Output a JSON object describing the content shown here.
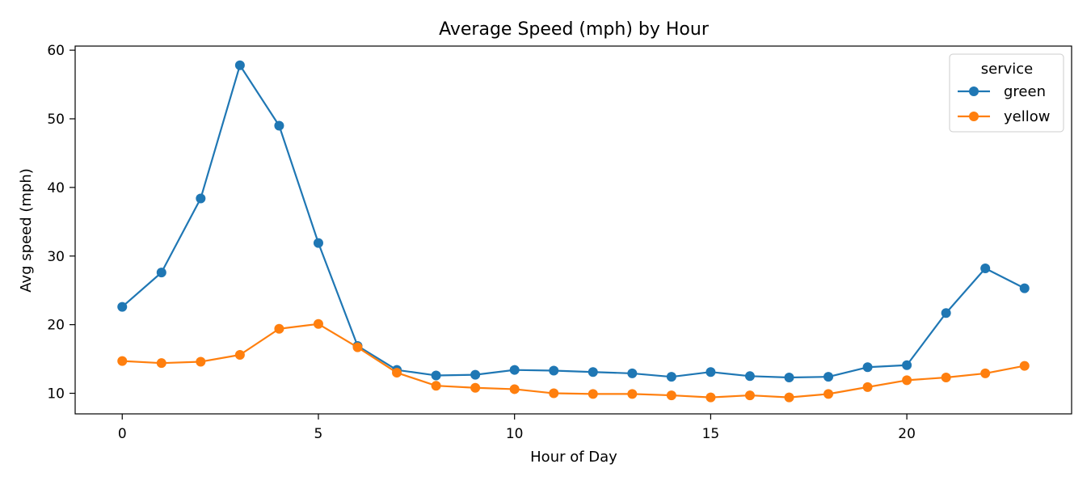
{
  "chart_data": {
    "type": "line",
    "title": "Average Speed (mph) by Hour",
    "xlabel": "Hour of Day",
    "ylabel": "Avg speed (mph)",
    "xlim": [
      -1.2,
      24.2
    ],
    "ylim": [
      7.0,
      60.6
    ],
    "xticks": [
      0,
      5,
      10,
      15,
      20
    ],
    "yticks": [
      10,
      20,
      30,
      40,
      50,
      60
    ],
    "grid": false,
    "legend": {
      "title": "service",
      "placement": "top-right"
    },
    "x": [
      0,
      1,
      2,
      3,
      4,
      5,
      6,
      7,
      8,
      9,
      10,
      11,
      12,
      13,
      14,
      15,
      16,
      17,
      18,
      19,
      20,
      21,
      22,
      23
    ],
    "series": [
      {
        "name": "green",
        "color": "#1f77b4",
        "values": [
          22.6,
          27.6,
          38.4,
          57.8,
          49.0,
          31.9,
          16.9,
          13.4,
          12.6,
          12.7,
          13.4,
          13.3,
          13.1,
          12.9,
          12.4,
          13.1,
          12.5,
          12.3,
          12.4,
          13.8,
          14.1,
          21.7,
          28.2,
          25.3
        ]
      },
      {
        "name": "yellow",
        "color": "#ff7f0e",
        "values": [
          14.7,
          14.4,
          14.6,
          15.6,
          19.4,
          20.1,
          16.7,
          13.0,
          11.1,
          10.8,
          10.6,
          10.0,
          9.9,
          9.9,
          9.7,
          9.4,
          9.7,
          9.4,
          9.9,
          10.9,
          11.9,
          12.3,
          12.9,
          14.0
        ]
      }
    ]
  }
}
